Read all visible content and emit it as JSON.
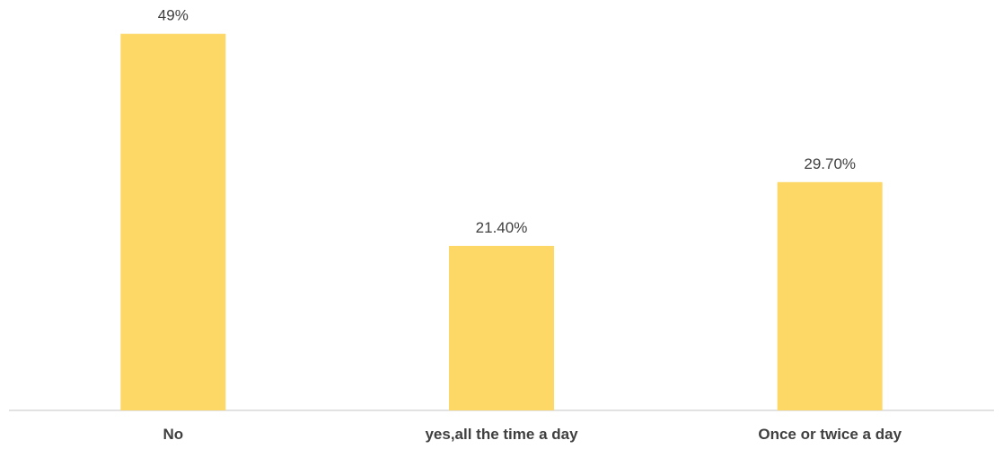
{
  "chart_data": {
    "type": "bar",
    "categories": [
      "No",
      "yes,all the time a day",
      "Once or twice a day"
    ],
    "values": [
      49,
      21.4,
      29.7
    ],
    "data_labels": [
      "49%",
      "21.40%",
      "29.70%"
    ],
    "title": "",
    "xlabel": "",
    "ylabel": "",
    "ylim": [
      0,
      52
    ],
    "grid": false,
    "legend": "none",
    "bar_color": "#FDD867",
    "axis_color": "#D9D9D9",
    "text_color": "#404040"
  }
}
